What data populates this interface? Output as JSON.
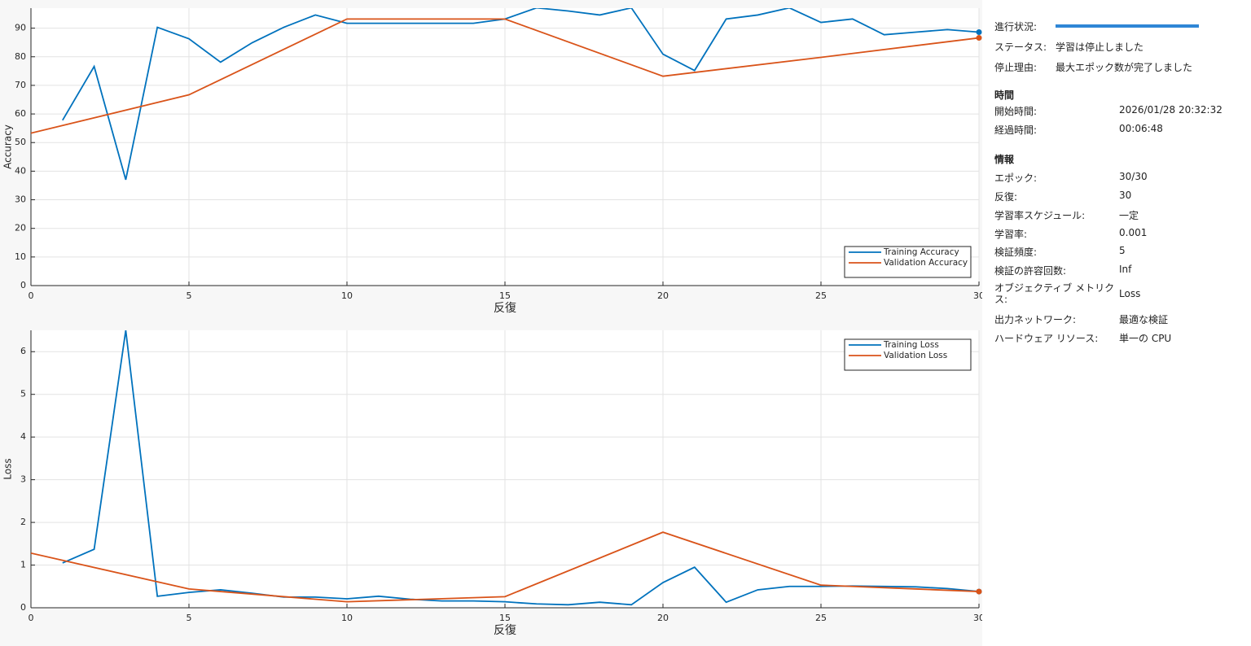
{
  "chart_data": [
    {
      "type": "line",
      "ylabel": "Accuracy",
      "xlabel": "反復",
      "xlim": [
        0,
        30
      ],
      "ylim": [
        0,
        97
      ],
      "xticks": [
        0,
        5,
        10,
        15,
        20,
        25,
        30
      ],
      "yticks": [
        0,
        10,
        20,
        30,
        40,
        50,
        60,
        70,
        80,
        90
      ],
      "grid": true,
      "legend": "southeast",
      "series": [
        {
          "name": "Training Accuracy",
          "color": "#0072bd",
          "x": [
            1,
            2,
            3,
            4,
            5,
            6,
            7,
            8,
            9,
            10,
            11,
            12,
            13,
            14,
            15,
            16,
            17,
            18,
            19,
            20,
            21,
            22,
            23,
            24,
            25,
            26,
            27,
            28,
            29,
            30
          ],
          "values": [
            57.8,
            76.6,
            37.0,
            90.3,
            86.3,
            78.1,
            84.9,
            90.3,
            94.6,
            91.7,
            91.7,
            91.7,
            91.7,
            91.7,
            93.2,
            97.1,
            96.0,
            94.6,
            97.1,
            80.9,
            75.2,
            93.2,
            94.6,
            97.1,
            92.0,
            93.2,
            87.7,
            88.6,
            89.5,
            88.6
          ]
        },
        {
          "name": "Validation Accuracy",
          "color": "#d95319",
          "x": [
            0,
            5,
            10,
            15,
            20,
            25,
            30
          ],
          "values": [
            53.3,
            66.7,
            93.2,
            93.2,
            73.2,
            79.8,
            86.6
          ]
        }
      ]
    },
    {
      "type": "line",
      "ylabel": "Loss",
      "xlabel": "反復",
      "xlim": [
        0,
        30
      ],
      "ylim": [
        0,
        6.5
      ],
      "xticks": [
        0,
        5,
        10,
        15,
        20,
        25,
        30
      ],
      "yticks": [
        0,
        1,
        2,
        3,
        4,
        5,
        6
      ],
      "grid": true,
      "legend": "northeast",
      "series": [
        {
          "name": "Training Loss",
          "color": "#0072bd",
          "x": [
            1,
            2,
            3,
            4,
            5,
            6,
            7,
            8,
            9,
            10,
            11,
            12,
            13,
            14,
            15,
            16,
            17,
            18,
            19,
            20,
            21,
            22,
            23,
            24,
            25,
            26,
            27,
            28,
            29,
            30
          ],
          "values": [
            1.05,
            1.37,
            6.5,
            0.27,
            0.36,
            0.42,
            0.34,
            0.25,
            0.25,
            0.21,
            0.27,
            0.2,
            0.16,
            0.16,
            0.14,
            0.09,
            0.07,
            0.13,
            0.07,
            0.59,
            0.95,
            0.13,
            0.42,
            0.5,
            0.5,
            0.51,
            0.5,
            0.49,
            0.45,
            0.38
          ]
        },
        {
          "name": "Validation Loss",
          "color": "#d95319",
          "x": [
            0,
            5,
            10,
            15,
            20,
            25,
            30
          ],
          "values": [
            1.28,
            0.44,
            0.14,
            0.26,
            1.77,
            0.53,
            0.38
          ]
        }
      ]
    }
  ],
  "panel": {
    "status_rows": [
      {
        "label": "進行状況:"
      },
      {
        "label": "ステータス:",
        "value": "学習は停止しました"
      },
      {
        "label": "停止理由:",
        "value": "最大エポック数が完了しました"
      }
    ],
    "time": {
      "title": "時間",
      "rows": [
        {
          "label": "開始時間:",
          "value": "2026/01/28 20:32:32"
        },
        {
          "label": "経過時間:",
          "value": "00:06:48"
        }
      ]
    },
    "info": {
      "title": "情報",
      "rows": [
        {
          "label": "エポック:",
          "value": "30/30"
        },
        {
          "label": "反復:",
          "value": "30"
        },
        {
          "label": "学習率スケジュール:",
          "value": "一定"
        },
        {
          "label": "学習率:",
          "value": "0.001"
        },
        {
          "label": "検証頻度:",
          "value": "5"
        },
        {
          "label": "検証の許容回数:",
          "value": "Inf"
        },
        {
          "label": "オブジェクティブ メトリクス:",
          "value": "Loss"
        },
        {
          "label": "出力ネットワーク:",
          "value": "最適な検証"
        },
        {
          "label": "ハードウェア リソース:",
          "value": "単一の CPU"
        }
      ]
    }
  }
}
